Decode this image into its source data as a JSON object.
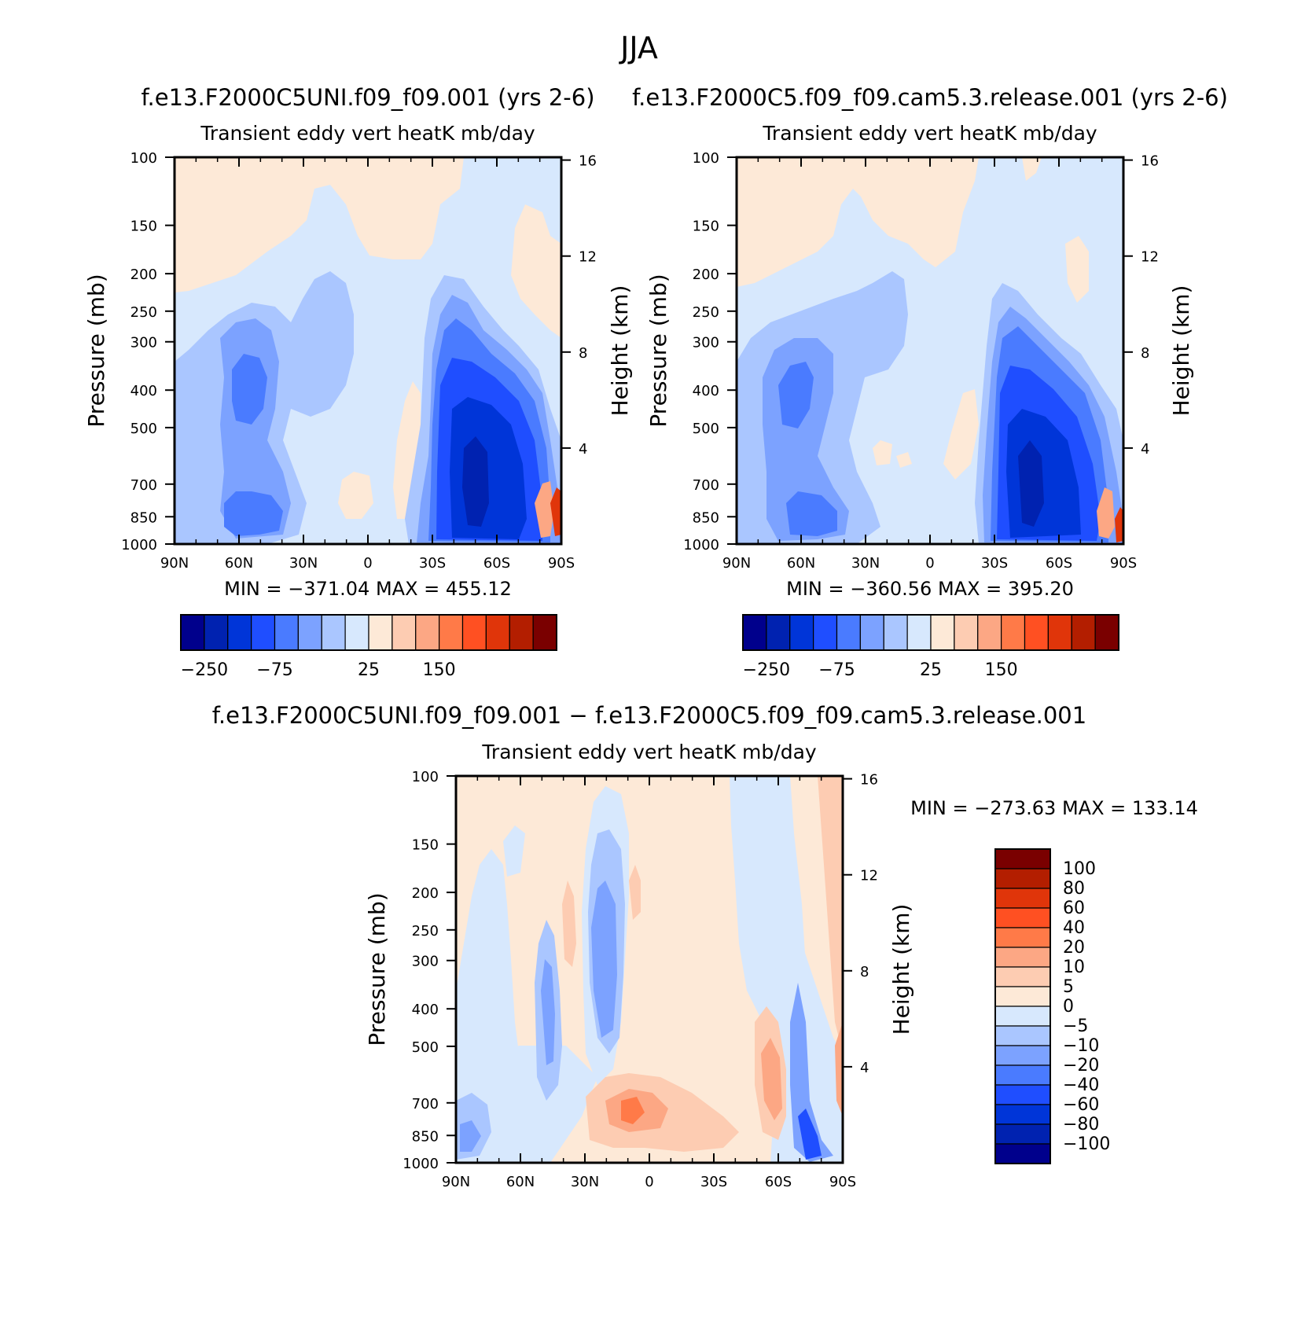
{
  "figure_title": "JJA",
  "chart_data": [
    {
      "type": "heatmap",
      "title": "f.e13.F2000C5UNI.f09_f09.001 (yrs 2-6)",
      "subtitle": "Transient eddy vert heatK mb/day",
      "ylabel": "Pressure (mb)",
      "ylabel_right": "Height (km)",
      "x_ticks": [
        "90N",
        "60N",
        "30N",
        "0",
        "30S",
        "60S",
        "90S"
      ],
      "y_ticks": [
        "100",
        "150",
        "200",
        "250",
        "300",
        "400",
        "500",
        "700",
        "850",
        "1000"
      ],
      "y_ticks_right": [
        "4",
        "8",
        "12",
        "16"
      ],
      "min_max_text": "MIN = −371.04   MAX = 455.12",
      "colorbar_labels": [
        "−250",
        "−75",
        "25",
        "150"
      ],
      "levels": 16
    },
    {
      "type": "heatmap",
      "title": "f.e13.F2000C5.f09_f09.cam5.3.release.001 (yrs 2-6)",
      "subtitle": "Transient eddy vert heatK mb/day",
      "ylabel": "Pressure (mb)",
      "ylabel_right": "Height (km)",
      "x_ticks": [
        "90N",
        "60N",
        "30N",
        "0",
        "30S",
        "60S",
        "90S"
      ],
      "y_ticks": [
        "100",
        "150",
        "200",
        "250",
        "300",
        "400",
        "500",
        "700",
        "850",
        "1000"
      ],
      "y_ticks_right": [
        "4",
        "8",
        "12",
        "16"
      ],
      "min_max_text": "MIN = −360.56   MAX = 395.20",
      "colorbar_labels": [
        "−250",
        "−75",
        "25",
        "150"
      ],
      "levels": 16
    },
    {
      "type": "heatmap",
      "title": "f.e13.F2000C5UNI.f09_f09.001 − f.e13.F2000C5.f09_f09.cam5.3.release.001",
      "subtitle": "Transient eddy vert heatK mb/day",
      "ylabel": "Pressure (mb)",
      "ylabel_right": "Height (km)",
      "x_ticks": [
        "90N",
        "60N",
        "30N",
        "0",
        "30S",
        "60S",
        "90S"
      ],
      "y_ticks": [
        "100",
        "150",
        "200",
        "250",
        "300",
        "400",
        "500",
        "700",
        "850",
        "1000"
      ],
      "y_ticks_right": [
        "4",
        "8",
        "12",
        "16"
      ],
      "min_max_text": "MIN = −273.63   MAX = 133.14",
      "colorbar_labels": [
        "100",
        "80",
        "60",
        "40",
        "20",
        "10",
        "5",
        "0",
        "−5",
        "−10",
        "−20",
        "−40",
        "−60",
        "−80",
        "−100"
      ],
      "levels": 16
    }
  ],
  "colors": {
    "palette": [
      "#00008c",
      "#0022b0",
      "#0035d8",
      "#1f4eff",
      "#4a7bff",
      "#7ca2ff",
      "#aac6ff",
      "#d7e8fd",
      "#fde9d7",
      "#fdccb2",
      "#fca784",
      "#ff7a48",
      "#ff5022",
      "#e0350a",
      "#b31e00",
      "#7a0000"
    ],
    "background": "#ffffff",
    "axis": "#000000"
  }
}
